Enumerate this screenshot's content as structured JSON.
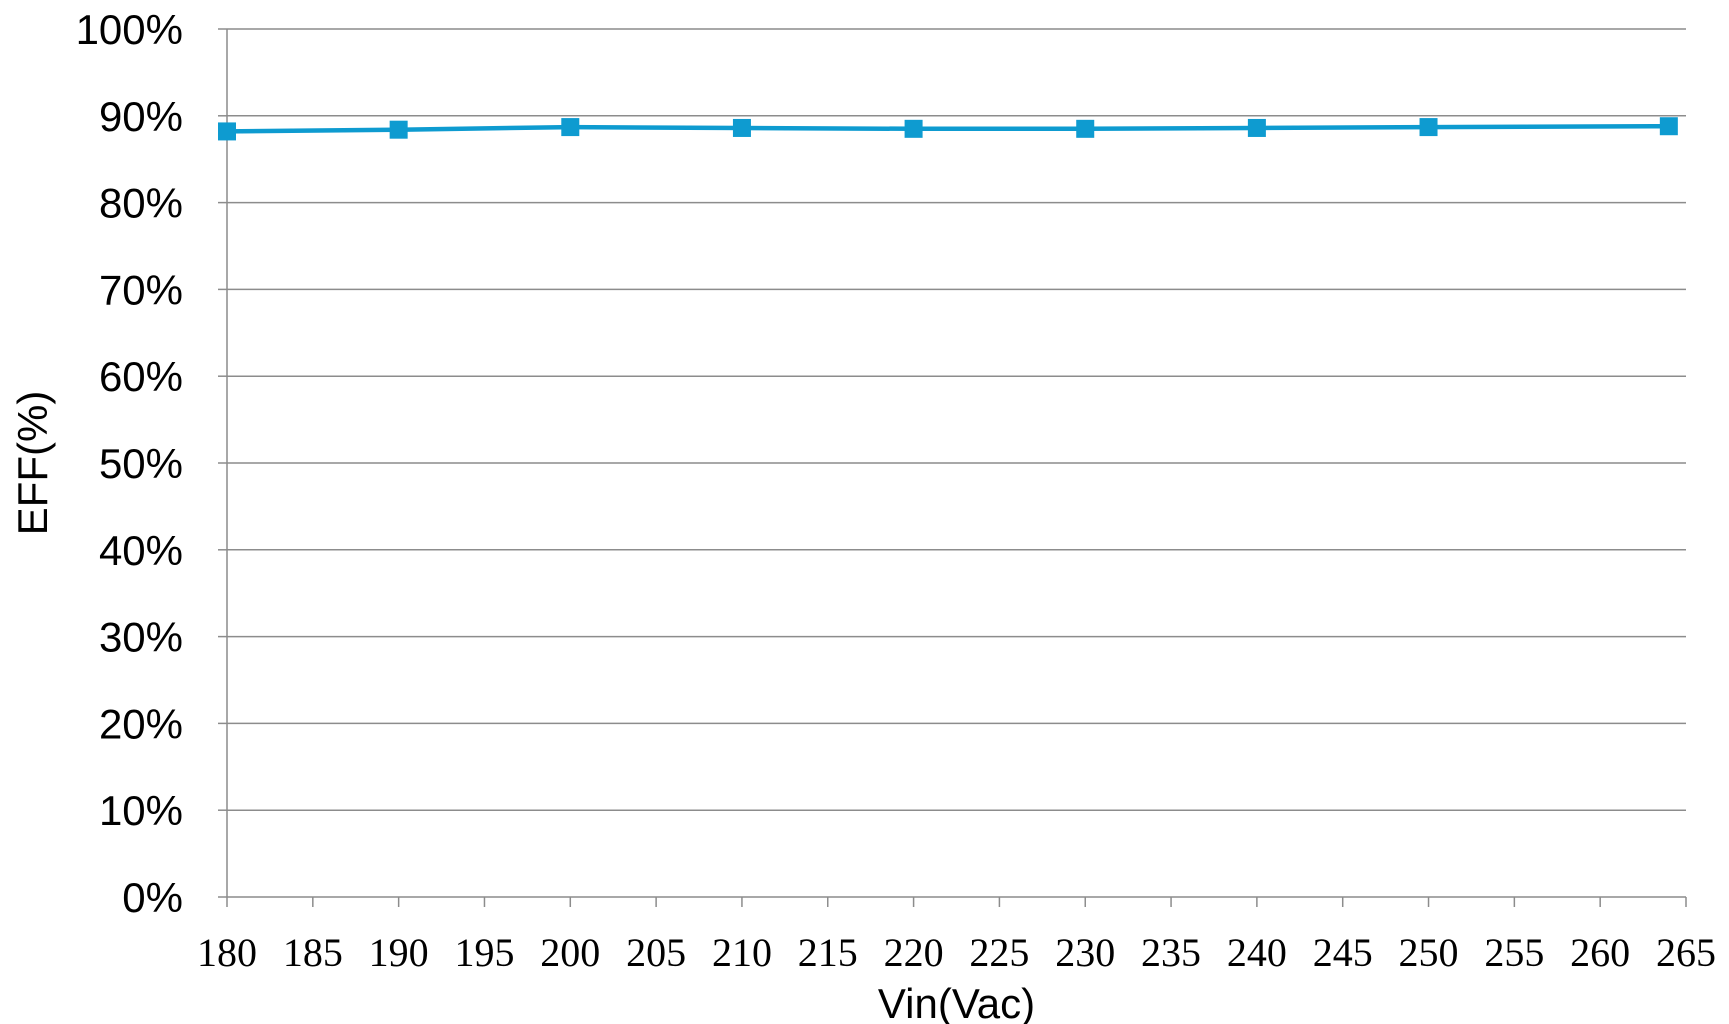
{
  "chart_data": {
    "type": "line",
    "title": "",
    "xlabel": "Vin(Vac)",
    "ylabel": "EFF(%)",
    "xlim": [
      180,
      265
    ],
    "ylim": [
      0,
      100
    ],
    "x_ticks": [
      "180",
      "185",
      "190",
      "195",
      "200",
      "205",
      "210",
      "215",
      "220",
      "225",
      "230",
      "235",
      "240",
      "245",
      "250",
      "255",
      "260",
      "265"
    ],
    "y_ticks": [
      "0%",
      "10%",
      "20%",
      "30%",
      "40%",
      "50%",
      "60%",
      "70%",
      "80%",
      "90%",
      "100%"
    ],
    "grid": "horizontal",
    "legend": "none",
    "colors": {
      "series": "#0e9bd0",
      "grid": "#8c8c8c"
    },
    "series": [
      {
        "marker": "square",
        "x": [
          180,
          190,
          200,
          210,
          220,
          230,
          240,
          250,
          264
        ],
        "y": [
          88.2,
          88.4,
          88.7,
          88.6,
          88.5,
          88.5,
          88.6,
          88.7,
          88.8
        ]
      }
    ]
  }
}
